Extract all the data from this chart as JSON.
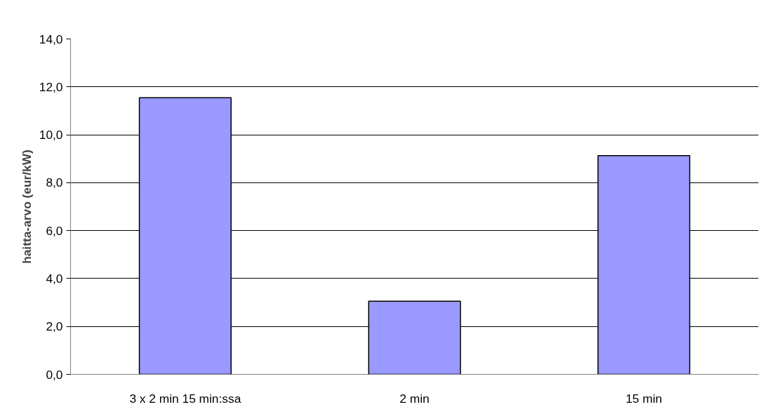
{
  "chart_data": {
    "type": "bar",
    "ylabel": "haitta-arvo (eur/kW)",
    "categories": [
      "3 x 2 min 15 min:ssa",
      "2 min",
      "15 min"
    ],
    "values": [
      11.55,
      3.05,
      9.13
    ],
    "color": "#9999ff",
    "ylim": [
      0,
      14
    ],
    "yticks": [
      {
        "value": 0,
        "label": "0,0"
      },
      {
        "value": 2,
        "label": "2,0"
      },
      {
        "value": 4,
        "label": "4,0"
      },
      {
        "value": 6,
        "label": "6,0"
      },
      {
        "value": 8,
        "label": "8,0"
      },
      {
        "value": 10,
        "label": "10,0"
      },
      {
        "value": 12,
        "label": "12,0"
      },
      {
        "value": 14,
        "label": "14,0"
      }
    ],
    "grid": "y"
  }
}
